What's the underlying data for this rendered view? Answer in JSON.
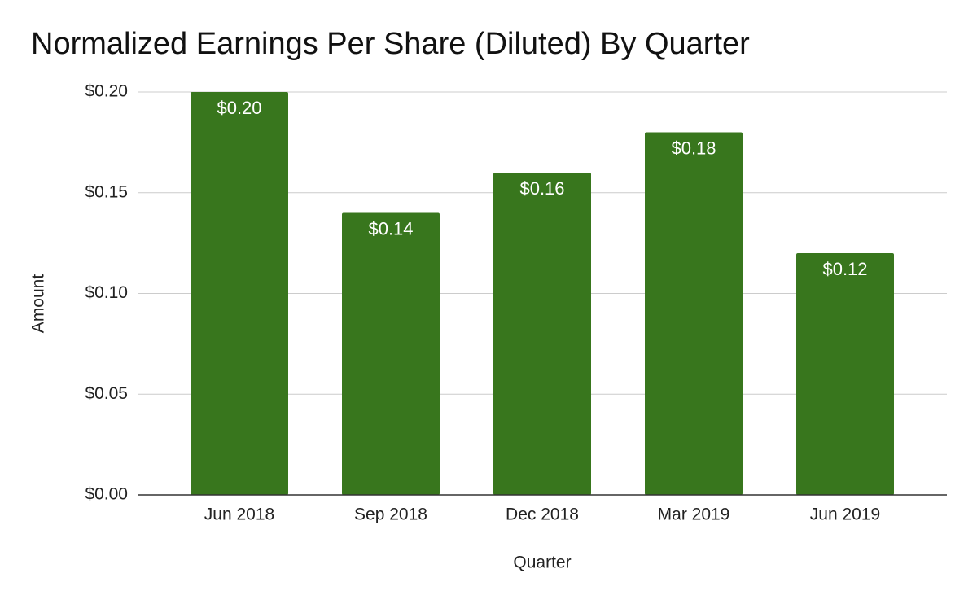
{
  "chart_data": {
    "type": "bar",
    "title": "Normalized Earnings Per Share (Diluted) By Quarter",
    "x_label": "Quarter",
    "y_label": "Amount",
    "categories": [
      "Jun 2018",
      "Sep 2018",
      "Dec 2018",
      "Mar 2019",
      "Jun 2019"
    ],
    "values": [
      0.2,
      0.14,
      0.16,
      0.18,
      0.12
    ],
    "value_labels": [
      "$0.20",
      "$0.14",
      "$0.16",
      "$0.18",
      "$0.12"
    ],
    "color": "#38761d",
    "ylim": [
      0,
      0.2
    ],
    "yticks": [
      {
        "value": 0,
        "label": "$0.00"
      },
      {
        "value": 0.05,
        "label": "$0.05"
      },
      {
        "value": 0.1,
        "label": "$0.10"
      },
      {
        "value": 0.15,
        "label": "$0.15"
      },
      {
        "value": 0.2,
        "label": "$0.20"
      }
    ],
    "grid": true
  }
}
